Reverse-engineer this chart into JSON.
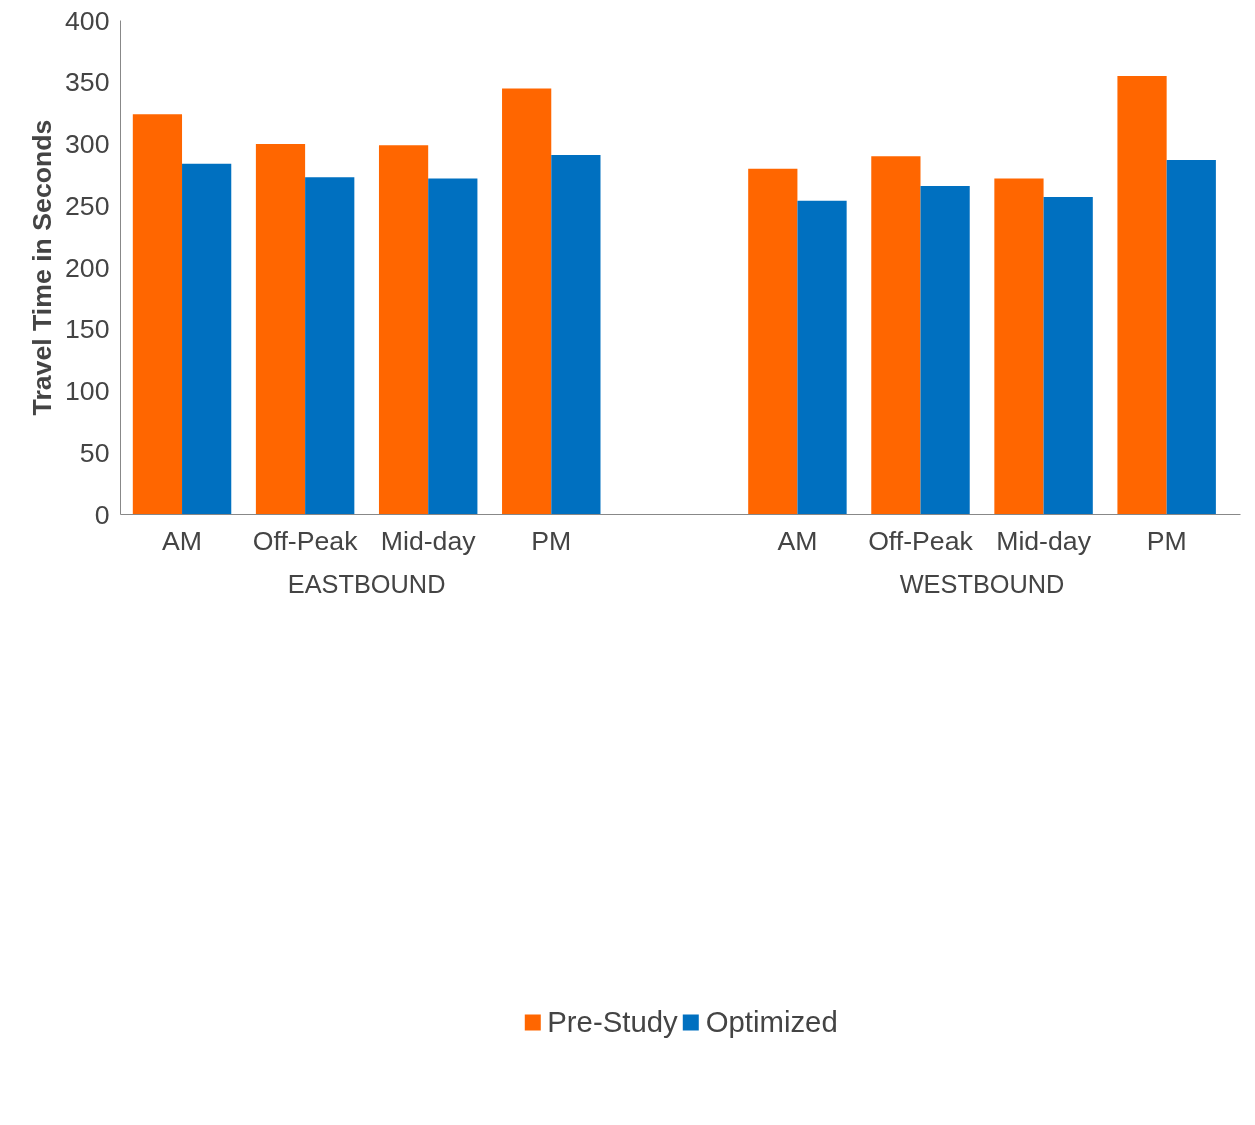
{
  "chart_data": {
    "type": "bar",
    "ylabel": "Travel Time in Seconds",
    "categories": [
      "AM",
      "Off-Peak",
      "Mid-day",
      "PM",
      null,
      "AM",
      "Off-Peak",
      "Mid-day",
      "PM"
    ],
    "series": [
      {
        "name": "Pre-Study",
        "color": "#ff6600",
        "values": [
          324,
          300,
          299,
          345,
          null,
          280,
          290,
          272,
          355
        ]
      },
      {
        "name": "Optimized",
        "color": "#0070c0",
        "values": [
          284,
          273,
          272,
          291,
          null,
          254,
          266,
          257,
          287
        ]
      }
    ],
    "ylim": [
      0,
      400
    ],
    "yticks": [
      0,
      50,
      100,
      150,
      200,
      250,
      300,
      350,
      400
    ],
    "grid": false,
    "legend": "bottom",
    "annotations": [
      {
        "text": "EASTBOUND"
      },
      {
        "text": "WESTBOUND"
      }
    ]
  }
}
